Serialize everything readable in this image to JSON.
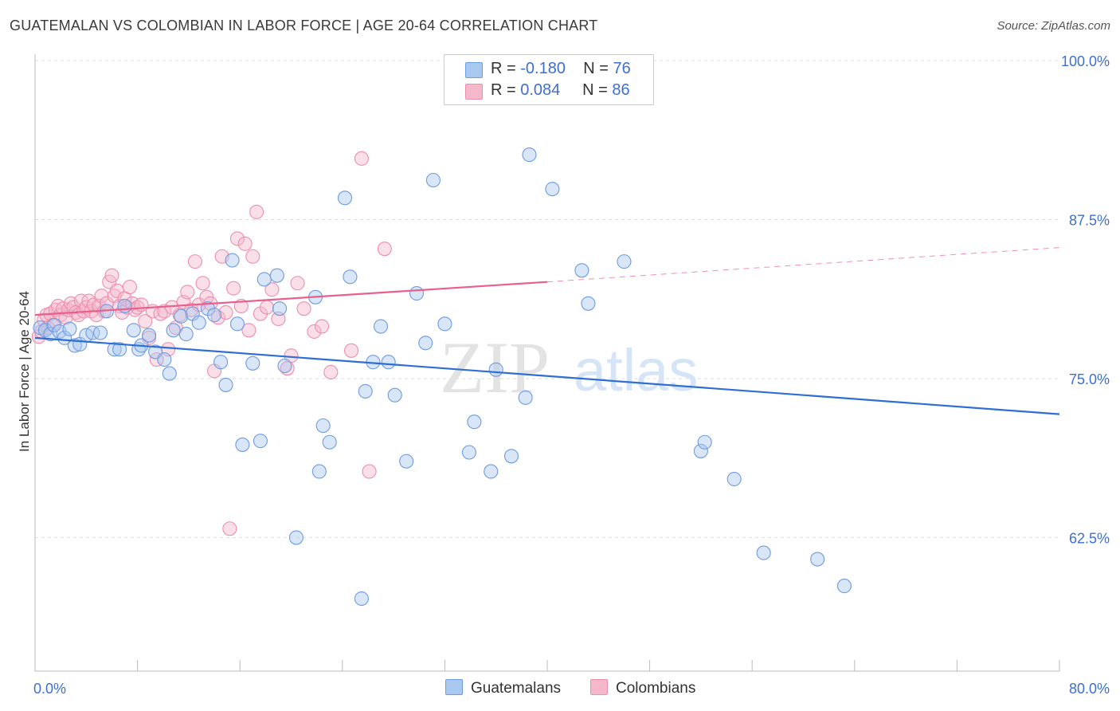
{
  "header": {
    "title": "GUATEMALAN VS COLOMBIAN IN LABOR FORCE | AGE 20-64 CORRELATION CHART",
    "source": "Source: ZipAtlas.com"
  },
  "watermark": {
    "part1": "ZIP",
    "part2": "atlas"
  },
  "legend": {
    "rows": [
      {
        "r_label": "R =",
        "r_value": "-0.180",
        "n_label": "N =",
        "n_value": "76"
      },
      {
        "r_label": "R =",
        "r_value": "0.084",
        "n_label": "N =",
        "n_value": "86"
      }
    ],
    "bottom": [
      {
        "label": "Guatemalans"
      },
      {
        "label": "Colombians"
      }
    ]
  },
  "colors": {
    "blue_fill": "#a8c8f0",
    "blue_stroke": "#6f9be0",
    "blue_line": "#2e6fd1",
    "pink_fill": "#f5b8cb",
    "pink_stroke": "#ec8fae",
    "pink_line": "#e8608c",
    "tick_label": "#3d6fd1",
    "grid": "#dddddd"
  },
  "chart_data": {
    "type": "scatter",
    "title": "GUATEMALAN VS COLOMBIAN IN LABOR FORCE | AGE 20-64 CORRELATION CHART",
    "xlabel": "",
    "ylabel": "In Labor Force | Age 20-64",
    "xlim": [
      0,
      80
    ],
    "ylim": [
      52,
      100.5
    ],
    "x_tick_labels": [
      {
        "value": 0,
        "label": "0.0%"
      },
      {
        "value": 80,
        "label": "80.0%"
      }
    ],
    "y_tick_labels": [
      {
        "value": 100,
        "label": "100.0%"
      },
      {
        "value": 87.5,
        "label": "87.5%"
      },
      {
        "value": 75,
        "label": "75.0%"
      },
      {
        "value": 62.5,
        "label": "62.5%"
      }
    ],
    "y_grid": [
      100,
      87.5,
      75,
      62.5
    ],
    "legend_position": "top-center",
    "series": [
      {
        "name": "Guatemalans",
        "color": "#a8c8f0",
        "x": [
          0.4,
          0.8,
          1.2,
          1.5,
          1.9,
          2.3,
          2.7,
          3.1,
          3.5,
          4.0,
          4.5,
          5.1,
          5.6,
          6.2,
          6.6,
          7.0,
          7.7,
          8.1,
          8.3,
          8.9,
          9.4,
          10.1,
          10.5,
          10.8,
          11.4,
          11.8,
          12.3,
          12.8,
          13.5,
          14.0,
          14.5,
          14.9,
          15.4,
          15.8,
          16.2,
          17.0,
          17.6,
          17.9,
          18.9,
          19.1,
          19.5,
          20.4,
          21.9,
          22.2,
          22.5,
          23.0,
          24.2,
          24.6,
          25.5,
          25.8,
          26.4,
          27.0,
          27.6,
          28.1,
          29.0,
          29.8,
          30.5,
          31.1,
          32.0,
          33.9,
          34.3,
          35.6,
          36.0,
          37.2,
          38.3,
          38.6,
          40.4,
          42.7,
          43.2,
          46.0,
          52.0,
          52.3,
          54.6,
          56.9,
          61.1,
          63.2
        ],
        "y": [
          79.0,
          78.8,
          78.5,
          79.2,
          78.7,
          78.2,
          78.9,
          77.6,
          77.7,
          78.4,
          78.6,
          78.6,
          80.3,
          77.3,
          77.3,
          80.7,
          78.8,
          77.3,
          77.6,
          78.4,
          77.1,
          76.5,
          75.4,
          78.8,
          79.9,
          78.5,
          80.1,
          79.4,
          80.5,
          80.0,
          76.3,
          74.5,
          84.3,
          79.3,
          69.8,
          76.2,
          70.1,
          82.8,
          83.1,
          80.5,
          76.0,
          62.5,
          81.4,
          67.7,
          71.3,
          70.0,
          89.2,
          83.0,
          57.7,
          74.0,
          76.3,
          79.1,
          76.3,
          73.7,
          68.5,
          81.7,
          77.8,
          90.6,
          79.3,
          69.2,
          71.6,
          67.7,
          75.7,
          68.9,
          73.5,
          92.6,
          89.9,
          83.5,
          80.9,
          84.2,
          69.3,
          70.0,
          67.1,
          61.3,
          60.8,
          58.7
        ]
      },
      {
        "name": "Colombians",
        "color": "#f5b8cb",
        "x": [
          0.3,
          0.5,
          0.7,
          0.9,
          1.0,
          1.2,
          1.4,
          1.6,
          1.8,
          2.0,
          2.2,
          2.4,
          2.6,
          2.8,
          3.0,
          3.2,
          3.4,
          3.6,
          3.8,
          4.0,
          4.2,
          4.4,
          4.6,
          4.8,
          5.0,
          5.2,
          5.4,
          5.6,
          5.8,
          6.0,
          6.2,
          6.4,
          6.6,
          6.8,
          7.0,
          7.2,
          7.4,
          7.6,
          7.8,
          8.0,
          8.3,
          8.6,
          8.9,
          9.2,
          9.5,
          9.8,
          10.1,
          10.4,
          10.7,
          11.0,
          11.3,
          11.6,
          11.9,
          12.2,
          12.5,
          12.8,
          13.1,
          13.4,
          13.7,
          14.0,
          14.3,
          14.6,
          14.9,
          15.2,
          15.5,
          15.8,
          16.1,
          16.4,
          16.7,
          17.0,
          17.3,
          17.6,
          18.1,
          18.5,
          19.0,
          19.7,
          20.0,
          20.5,
          21.0,
          21.8,
          22.4,
          23.1,
          24.7,
          25.5,
          26.1,
          27.3
        ],
        "y": [
          78.3,
          78.7,
          79.6,
          80.0,
          79.0,
          80.1,
          79.2,
          80.4,
          80.7,
          80.0,
          80.5,
          79.8,
          80.4,
          80.9,
          80.6,
          80.2,
          80.0,
          81.1,
          80.3,
          80.6,
          81.1,
          80.3,
          80.8,
          80.0,
          80.7,
          81.5,
          80.3,
          80.9,
          82.6,
          83.1,
          81.5,
          81.9,
          80.7,
          80.2,
          81.3,
          80.6,
          82.2,
          80.9,
          80.4,
          80.6,
          80.8,
          79.5,
          78.2,
          80.3,
          76.5,
          80.1,
          80.3,
          77.3,
          80.6,
          79.0,
          80.0,
          81.0,
          81.8,
          80.4,
          84.2,
          80.8,
          82.5,
          81.4,
          80.9,
          75.6,
          79.8,
          84.6,
          80.2,
          63.2,
          82.1,
          86.0,
          80.7,
          85.6,
          78.8,
          84.6,
          88.1,
          80.1,
          80.6,
          82.0,
          79.7,
          75.8,
          76.8,
          82.5,
          80.5,
          78.7,
          79.1,
          75.5,
          77.2,
          92.3,
          67.7,
          85.2
        ]
      }
    ],
    "trend_lines": [
      {
        "series": "Guatemalans",
        "x": [
          0,
          80
        ],
        "y": [
          78.2,
          72.2
        ],
        "style": "solid"
      },
      {
        "series": "Colombians",
        "x": [
          0,
          40
        ],
        "y": [
          80.0,
          82.6
        ],
        "style": "solid"
      },
      {
        "series": "Colombians",
        "x": [
          40,
          80
        ],
        "y": [
          82.6,
          85.3
        ],
        "style": "dashed"
      }
    ]
  }
}
